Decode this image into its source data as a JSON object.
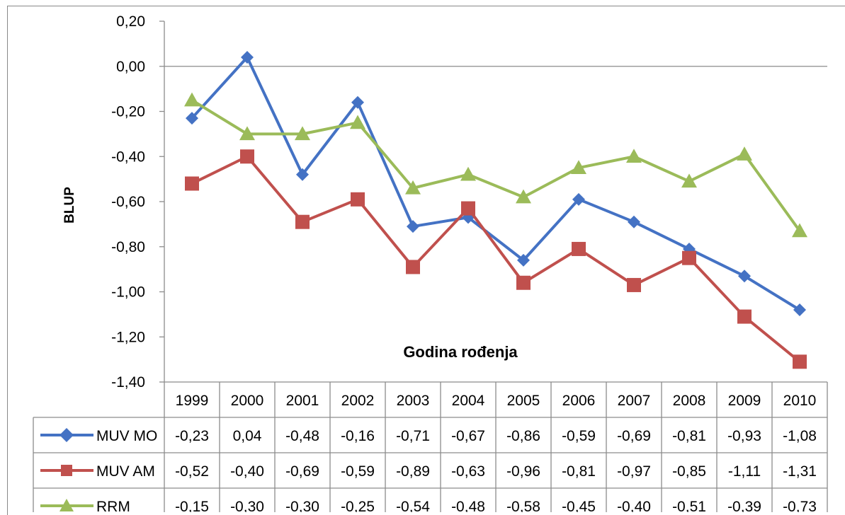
{
  "chart_data": {
    "type": "line",
    "ylabel": "BLUP",
    "xlabel": "Godina rođenja",
    "ylim": [
      -1.4,
      0.2
    ],
    "yticks": [
      "0,20",
      "0,00",
      "-0,20",
      "-0,40",
      "-0,60",
      "-0,80",
      "-1,00",
      "-1,20",
      "-1,40"
    ],
    "categories": [
      "1999",
      "2000",
      "2001",
      "2002",
      "2003",
      "2004",
      "2005",
      "2006",
      "2007",
      "2008",
      "2009",
      "2010"
    ],
    "series": [
      {
        "name": "MUV MO",
        "color": "#4472c4",
        "marker": "diamond",
        "values": [
          -0.23,
          0.04,
          -0.48,
          -0.16,
          -0.71,
          -0.67,
          -0.86,
          -0.59,
          -0.69,
          -0.81,
          -0.93,
          -1.08
        ],
        "labels": [
          "-0,23",
          "0,04",
          "-0,48",
          "-0,16",
          "-0,71",
          "-0,67",
          "-0,86",
          "-0,59",
          "-0,69",
          "-0,81",
          "-0,93",
          "-1,08"
        ]
      },
      {
        "name": "MUV AM",
        "color": "#c0504d",
        "marker": "square",
        "values": [
          -0.52,
          -0.4,
          -0.69,
          -0.59,
          -0.89,
          -0.63,
          -0.96,
          -0.81,
          -0.97,
          -0.85,
          -1.11,
          -1.31
        ],
        "labels": [
          "-0,52",
          "-0,40",
          "-0,69",
          "-0,59",
          "-0,89",
          "-0,63",
          "-0,96",
          "-0,81",
          "-0,97",
          "-0,85",
          "-1,11",
          "-1,31"
        ]
      },
      {
        "name": "RRM",
        "color": "#9bbb59",
        "marker": "triangle",
        "values": [
          -0.15,
          -0.3,
          -0.3,
          -0.25,
          -0.54,
          -0.48,
          -0.58,
          -0.45,
          -0.4,
          -0.51,
          -0.39,
          -0.73
        ],
        "labels": [
          "-0,15",
          "-0,30",
          "-0,30",
          "-0,25",
          "-0,54",
          "-0,48",
          "-0,58",
          "-0,45",
          "-0,40",
          "-0,51",
          "-0,39",
          "-0,73"
        ]
      }
    ],
    "grid": false,
    "legend": "data-table"
  }
}
